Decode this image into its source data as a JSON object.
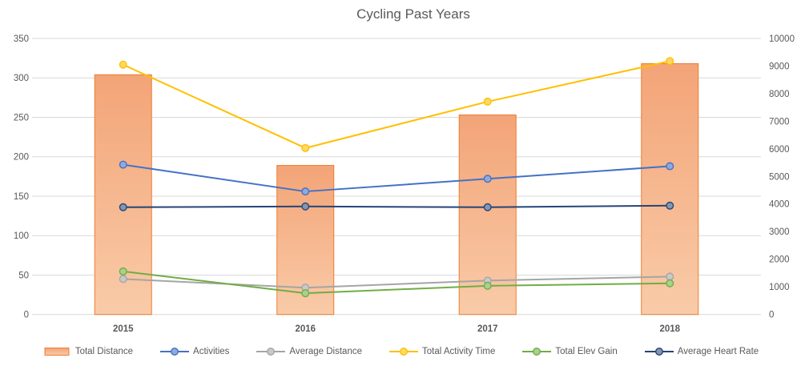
{
  "title": "Cycling Past Years",
  "chart_data": {
    "type": "combo (bar + line, dual axis)",
    "title": "Cycling Past Years",
    "categories": [
      "2015",
      "2016",
      "2017",
      "2018"
    ],
    "left_axis": {
      "min": 0,
      "max": 350,
      "step": 50,
      "ticks": [
        0,
        50,
        100,
        150,
        200,
        250,
        300,
        350
      ]
    },
    "right_axis": {
      "min": 0,
      "max": 10000,
      "step": 1000,
      "ticks": [
        0,
        1000,
        2000,
        3000,
        4000,
        5000,
        6000,
        7000,
        8000,
        9000,
        10000
      ]
    },
    "grid": true,
    "legend_position": "bottom",
    "series": [
      {
        "name": "Total Distance",
        "type": "bar",
        "axis": "left",
        "values": [
          304,
          189,
          253,
          318
        ],
        "color": "#ED7D31",
        "fill_top": "#F3A477",
        "fill_bottom": "#F9CBA8"
      },
      {
        "name": "Activities",
        "type": "line",
        "axis": "left",
        "values": [
          190,
          156,
          172,
          188
        ],
        "color": "#4472C4",
        "marker_fill": "#8FAADC"
      },
      {
        "name": "Average Distance",
        "type": "line",
        "axis": "left",
        "values": [
          45,
          34,
          43,
          48
        ],
        "color": "#A5A5A5",
        "marker_fill": "#C9C9C9"
      },
      {
        "name": "Total Activity Time",
        "type": "line",
        "axis": "right",
        "values": [
          9050,
          6030,
          7710,
          9180
        ],
        "color": "#FFC000",
        "marker_fill": "#FFD966"
      },
      {
        "name": "Total Elev Gain",
        "type": "line",
        "axis": "right",
        "values": [
          1560,
          770,
          1040,
          1130
        ],
        "color": "#70AD47",
        "marker_fill": "#A9D18E"
      },
      {
        "name": "Average Heart Rate",
        "type": "line",
        "axis": "left",
        "values": [
          136,
          137,
          136,
          138
        ],
        "color": "#264478",
        "marker_fill": "#8496B0"
      }
    ],
    "text_color": "#595959",
    "gridline_color": "#D9D9D9"
  }
}
